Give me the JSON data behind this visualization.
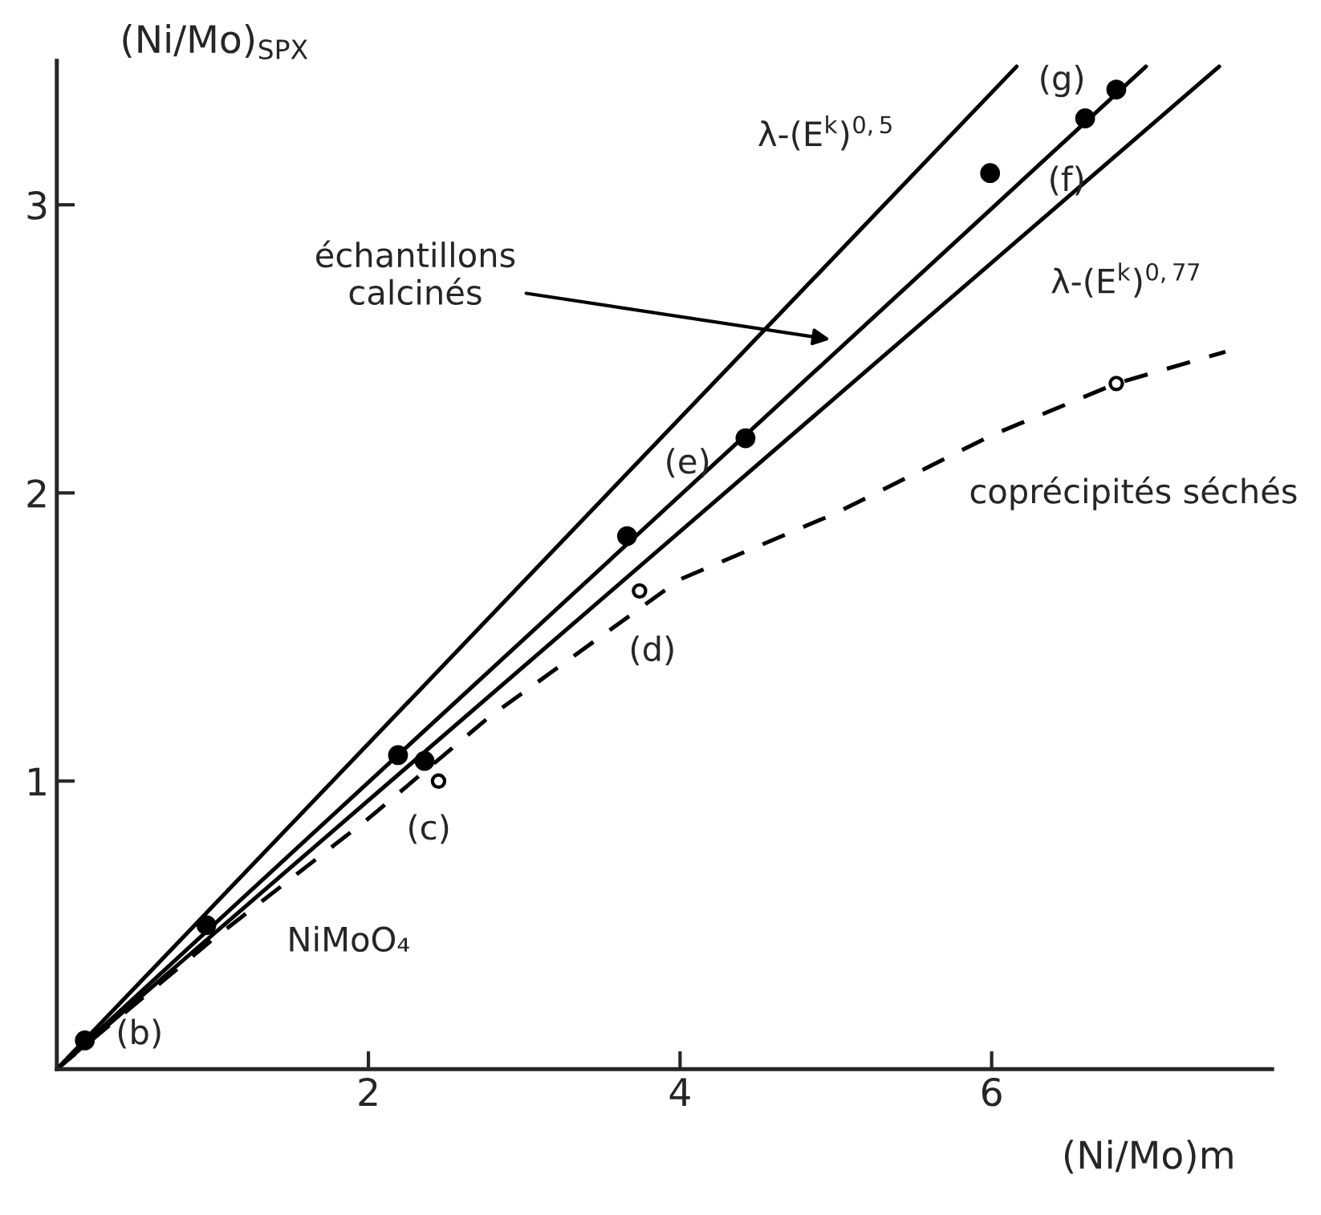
{
  "chart_data": {
    "type": "scatter",
    "xlabel": "(Ni/Mo)m",
    "ylabel": "(Ni/Mo)$_{SPX}$",
    "xlim": [
      0,
      7.8
    ],
    "ylim": [
      0,
      3.5
    ],
    "xticks": [
      2,
      4,
      6
    ],
    "yticks": [
      1,
      2,
      3
    ],
    "grid": false,
    "legend": false,
    "series": [
      {
        "type": "line",
        "color": "#000000",
        "marker": "none",
        "line_style": "solid",
        "x": [
          0,
          6.16
        ],
        "values": [
          0,
          3.48
        ]
      },
      {
        "type": "line",
        "color": "#000000",
        "marker": "none",
        "line_style": "solid",
        "x": [
          0,
          6.99
        ],
        "values": [
          0,
          3.48
        ]
      },
      {
        "type": "line",
        "color": "#000000",
        "marker": "none",
        "line_style": "solid",
        "x": [
          0,
          7.46
        ],
        "values": [
          0,
          3.48
        ]
      },
      {
        "type": "line",
        "color": "#000000",
        "marker": "none",
        "line_style": "dashed",
        "x": [
          0,
          1,
          2,
          2.77,
          4,
          5,
          6,
          6.8,
          7.5
        ],
        "values": [
          0,
          0.45,
          0.87,
          1.22,
          1.7,
          1.93,
          2.2,
          2.38,
          2.49
        ]
      },
      {
        "color": "#000000",
        "marker": "circle",
        "x": [
          0.18,
          0.96,
          2.19,
          2.36,
          3.66,
          4.42,
          5.99,
          6.6,
          6.8
        ],
        "values": [
          0.1,
          0.5,
          1.09,
          1.07,
          1.85,
          2.19,
          3.11,
          3.3,
          3.4
        ]
      },
      {
        "color": "#ffffff",
        "marker": "circle",
        "x": [
          2.45,
          3.74,
          6.8
        ],
        "values": [
          1.0,
          1.66,
          2.38
        ]
      }
    ],
    "annotations": [
      "(b)",
      "NiMoO₄",
      "(c)",
      "(d)",
      "(e)",
      "(f)",
      "(g)",
      "λ-(E$^{k}$)$^{0,5}$",
      "λ-(E$^{k}$)$^{0,77}$",
      "coprécipités séchés",
      "échantillons\ncalcinés"
    ]
  }
}
